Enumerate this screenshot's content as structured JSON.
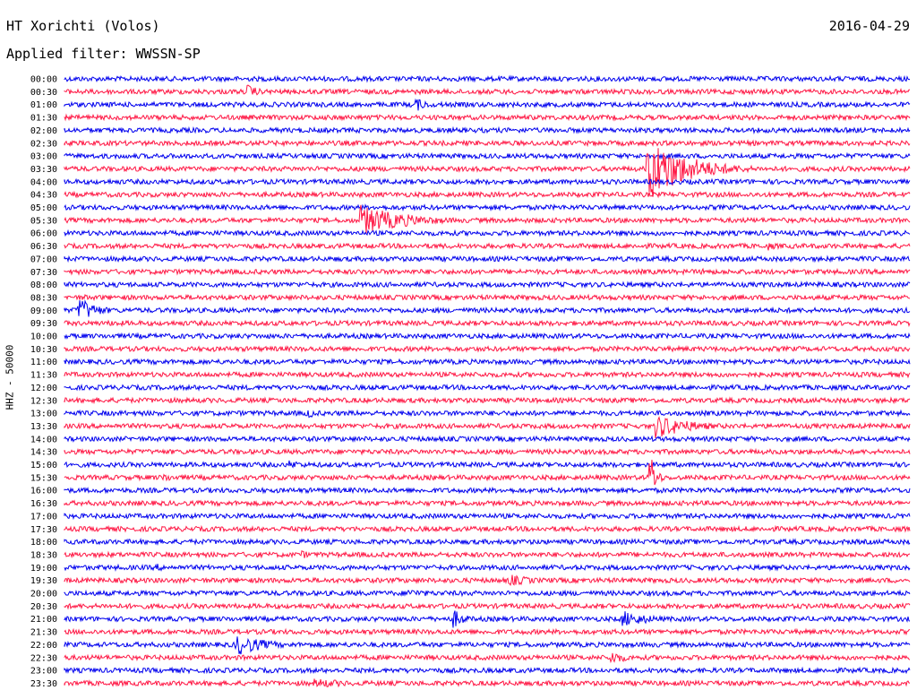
{
  "header": {
    "station": "HT Xorichti (Volos)",
    "filter": "Applied filter: WWSSN-SP",
    "date": "2016-04-29",
    "channel": "HHZ - 50000"
  },
  "colors": {
    "blue": "#0000ee",
    "red": "#ff1744"
  },
  "chart_data": {
    "type": "line",
    "title": "HT Xorichti (Volos)",
    "subtitle": "Applied filter: WWSSN-SP",
    "ylabel": "HHZ - 50000",
    "xlabel": "",
    "traces": [
      "00:00",
      "00:30",
      "01:00",
      "01:30",
      "02:00",
      "02:30",
      "03:00",
      "03:30",
      "04:00",
      "04:30",
      "05:00",
      "05:30",
      "06:00",
      "06:30",
      "07:00",
      "07:30",
      "08:00",
      "08:30",
      "09:00",
      "09:30",
      "10:00",
      "10:30",
      "11:00",
      "11:30",
      "12:00",
      "12:30",
      "13:00",
      "13:30",
      "14:00",
      "14:30",
      "15:00",
      "15:30",
      "16:00",
      "16:30",
      "17:00",
      "17:30",
      "18:00",
      "18:30",
      "19:00",
      "19:30",
      "20:00",
      "20:30",
      "21:00",
      "21:30",
      "22:00",
      "22:30",
      "23:00",
      "23:30"
    ],
    "trace_colors": [
      "blue",
      "red"
    ],
    "trace_minutes": 30,
    "events": [
      {
        "trace": "01:00",
        "minute": 12.5,
        "amp": 1.2,
        "dur": 0.4
      },
      {
        "trace": "00:30",
        "minute": 4.6,
        "amp": 0.4,
        "dur": 0.8
      },
      {
        "trace": "00:30",
        "minute": 6.5,
        "amp": 1.3,
        "dur": 0.4
      },
      {
        "trace": "00:30",
        "minute": 20.5,
        "amp": 0.3,
        "dur": 0.8
      },
      {
        "trace": "01:30",
        "minute": 3.5,
        "amp": 0.4,
        "dur": 0.8
      },
      {
        "trace": "02:00",
        "minute": 17.8,
        "amp": 0.3,
        "dur": 1.0
      },
      {
        "trace": "03:30",
        "minute": 20.7,
        "amp": 6.0,
        "dur": 1.4
      },
      {
        "trace": "04:00",
        "minute": 1.5,
        "amp": 0.4,
        "dur": 1.2
      },
      {
        "trace": "05:30",
        "minute": 10.5,
        "amp": 2.8,
        "dur": 1.6
      },
      {
        "trace": "06:30",
        "minute": 25.0,
        "amp": 0.7,
        "dur": 0.4
      },
      {
        "trace": "07:30",
        "minute": 22.7,
        "amp": 0.6,
        "dur": 0.5
      },
      {
        "trace": "08:30",
        "minute": 0.6,
        "amp": 0.5,
        "dur": 0.8
      },
      {
        "trace": "09:00",
        "minute": 0.5,
        "amp": 2.5,
        "dur": 0.6
      },
      {
        "trace": "09:30",
        "minute": 1.7,
        "amp": 0.6,
        "dur": 0.5
      },
      {
        "trace": "09:30",
        "minute": 13.8,
        "amp": 0.3,
        "dur": 1.0
      },
      {
        "trace": "10:00",
        "minute": 25.9,
        "amp": 0.4,
        "dur": 0.8
      },
      {
        "trace": "11:00",
        "minute": 19.8,
        "amp": 0.4,
        "dur": 1.0
      },
      {
        "trace": "13:00",
        "minute": 8.6,
        "amp": 1.0,
        "dur": 0.4
      },
      {
        "trace": "13:30",
        "minute": 21.0,
        "amp": 2.2,
        "dur": 1.2
      },
      {
        "trace": "15:00",
        "minute": 8.0,
        "amp": 0.7,
        "dur": 0.8
      },
      {
        "trace": "15:30",
        "minute": 3.5,
        "amp": 0.8,
        "dur": 0.5
      },
      {
        "trace": "15:30",
        "minute": 20.8,
        "amp": 4.5,
        "dur": 0.2
      },
      {
        "trace": "16:00",
        "minute": 25.0,
        "amp": 0.4,
        "dur": 1.0
      },
      {
        "trace": "17:00",
        "minute": 14.8,
        "amp": 0.4,
        "dur": 1.2
      },
      {
        "trace": "18:00",
        "minute": 17.5,
        "amp": 0.4,
        "dur": 0.8
      },
      {
        "trace": "18:00",
        "minute": 27.6,
        "amp": 0.4,
        "dur": 0.5
      },
      {
        "trace": "18:30",
        "minute": 8.4,
        "amp": 0.7,
        "dur": 0.6
      },
      {
        "trace": "19:00",
        "minute": 3.3,
        "amp": 0.6,
        "dur": 0.5
      },
      {
        "trace": "19:30",
        "minute": 15.8,
        "amp": 1.0,
        "dur": 1.0
      },
      {
        "trace": "20:00",
        "minute": 12.2,
        "amp": 0.7,
        "dur": 1.2
      },
      {
        "trace": "20:30",
        "minute": 11.0,
        "amp": 0.4,
        "dur": 0.8
      },
      {
        "trace": "21:00",
        "minute": 13.8,
        "amp": 1.8,
        "dur": 0.4
      },
      {
        "trace": "21:00",
        "minute": 19.8,
        "amp": 1.5,
        "dur": 1.0
      },
      {
        "trace": "22:00",
        "minute": 6.1,
        "amp": 2.0,
        "dur": 1.0
      },
      {
        "trace": "22:30",
        "minute": 19.4,
        "amp": 1.2,
        "dur": 0.6
      },
      {
        "trace": "23:30",
        "minute": 8.9,
        "amp": 0.8,
        "dur": 1.6
      },
      {
        "trace": "23:30",
        "minute": 20.5,
        "amp": 0.4,
        "dur": 1.0
      }
    ],
    "grid": false,
    "legend": "none"
  }
}
